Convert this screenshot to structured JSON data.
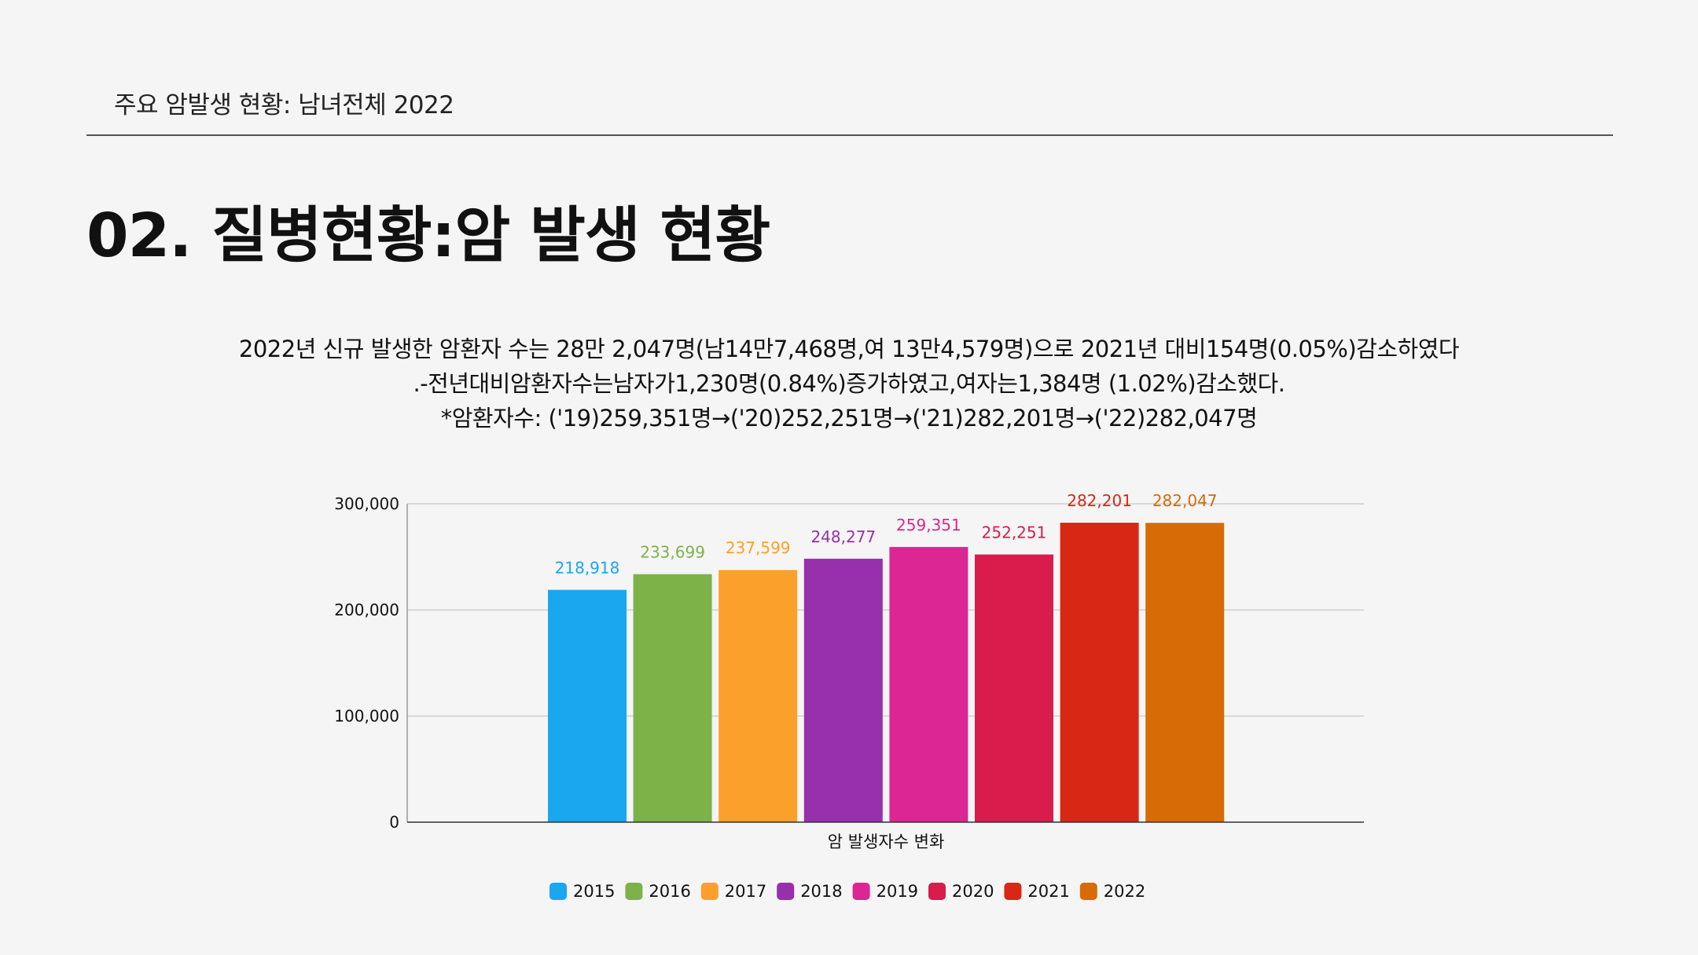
{
  "header": {
    "section_label": "주요 암발생 현황: 남녀전체 2022"
  },
  "page": {
    "title": "02. 질병현황:암 발생 현황"
  },
  "summary": {
    "line1": "2022년 신규 발생한 암환자 수는 28만 2,047명(남14만7,468명,여 13만4,579명)으로 2021년 대비154명(0.05%)감소하였다",
    "line2": ".-전년대비암환자수는남자가1,230명(0.84%)증가하였고,여자는1,384명 (1.02%)감소했다.",
    "line3": "*암환자수: ('19)259,351명→('20)252,251명→('21)282,201명→('22)282,047명"
  },
  "chart_data": {
    "type": "bar",
    "title": "",
    "xlabel": "암 발생자수 변화",
    "ylabel": "",
    "ylim": [
      0,
      300000
    ],
    "yticks": [
      {
        "value": 0,
        "label": "0"
      },
      {
        "value": 100000,
        "label": "100,000"
      },
      {
        "value": 200000,
        "label": "200,000"
      },
      {
        "value": 300000,
        "label": "300,000"
      }
    ],
    "grid": true,
    "legend_position": "bottom",
    "categories": [
      "암 발생자수 변화"
    ],
    "series": [
      {
        "name": "2015",
        "value": 218918,
        "label": "218,918",
        "color": "#19a7f0"
      },
      {
        "name": "2016",
        "value": 233699,
        "label": "233,699",
        "color": "#7db249"
      },
      {
        "name": "2017",
        "value": 237599,
        "label": "237,599",
        "color": "#fba02b"
      },
      {
        "name": "2018",
        "value": 248277,
        "label": "248,277",
        "color": "#982fac"
      },
      {
        "name": "2019",
        "value": 259351,
        "label": "259,351",
        "color": "#db2694"
      },
      {
        "name": "2020",
        "value": 252251,
        "label": "252,251",
        "color": "#d91c4b"
      },
      {
        "name": "2021",
        "value": 282201,
        "label": "282,201",
        "color": "#d82714"
      },
      {
        "name": "2022",
        "value": 282047,
        "label": "282,047",
        "color": "#d76b05"
      }
    ]
  }
}
